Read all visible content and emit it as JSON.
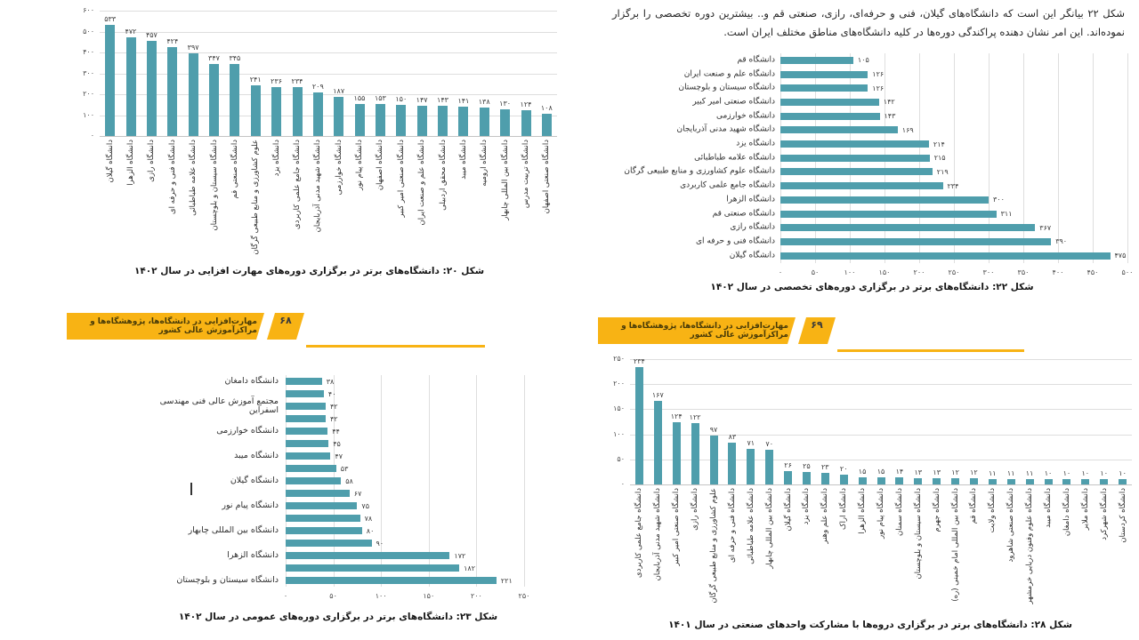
{
  "colors": {
    "bar": "#4F9EAC",
    "banner": "#F8B314",
    "grid": "#dedede",
    "axis": "#c4c4c4"
  },
  "page_left": {
    "banner": {
      "text": "مهارت‌افزایی در دانشگاه‌ها، پژوهشگاه‌ها و مراکزآموزش عالی کشور",
      "page_number": "۶۸"
    }
  },
  "page_right": {
    "intro_text": "شکل ۲۲ بیانگر این است که دانشگاه‌های گیلان، فنی و حرفه‌ای، رازی، صنعتی قم و.. بیشترین دوره تخصصی را برگزار نموده‌اند. این امر نشان دهنده پراکندگی دوره‌ها در کلیه دانشگاه‌های مناطق مختلف ایران است.",
    "banner": {
      "text": "مهارت‌افزایی در دانشگاه‌ها، پژوهشگاه‌ها و مراکزآموزش عالی کشور",
      "page_number": "۶۹"
    }
  },
  "chart_data": [
    {
      "id": "fig20",
      "type": "bar",
      "orientation": "vertical",
      "caption": "شکل ۲۰: دانشگاه‌های برتر در برگزاری دوره‌های مهارت افزایی در سال ۱۴۰۲",
      "categories": [
        "دانشگاه گیلان",
        "دانشگاه الزهرا",
        "دانشگاه رازی",
        "دانشگاه فنی و حرفه ای",
        "دانشگاه علامه طباطبائی",
        "دانشگاه سیستان و بلوچستان",
        "دانشگاه صنعتی قم",
        "علوم کشاورزی و منابع طبیعی گرگان",
        "دانشگاه یزد",
        "دانشگاه جامع علمی کاربردی",
        "دانشگاه شهید مدنی آذربایجان",
        "دانشگاه خوارزمی",
        "دانشگاه پیام نور",
        "دانشگاه اصفهان",
        "دانشگاه صنعتی امیر کبیر",
        "دانشگاه علم و صنعت ایران",
        "دانشگاه محقق اردبیلی",
        "دانشگاه میبد",
        "دانشگاه ارومیه",
        "دانشگاه بین المللی چابهار",
        "دانشگاه تربیت مدرس",
        "دانشگاه صنعتی اصفهان"
      ],
      "values": [
        533,
        472,
        457,
        424,
        397,
        347,
        345,
        241,
        236,
        234,
        209,
        187,
        155,
        153,
        150,
        147,
        143,
        141,
        138,
        130,
        124,
        108
      ],
      "ylim": [
        0,
        600
      ],
      "yticks": [
        0,
        100,
        200,
        300,
        400,
        500,
        600
      ],
      "grid": true,
      "legend": false
    },
    {
      "id": "fig22",
      "type": "bar",
      "orientation": "horizontal",
      "caption": "شکل ۲۲: دانشگاه‌های برتر در برگزاری دوره‌های تخصصی در سال ۱۴۰۲",
      "categories": [
        "دانشگاه قم",
        "دانشگاه علم و صنعت ایران",
        "دانشگاه سیستان و بلوچستان",
        "دانشگاه صنعتی امیر کبیر",
        "دانشگاه خوارزمی",
        "دانشگاه شهید مدنی آذربایجان",
        "دانشگاه یزد",
        "دانشگاه علامه طباطبائی",
        "دانشگاه علوم کشاورزی و منابع طبیعی گرگان",
        "دانشگاه جامع علمی کاربردی",
        "دانشگاه الزهرا",
        "دانشگاه صنعتی قم",
        "دانشگاه رازی",
        "دانشگاه فنی و حرفه ای",
        "دانشگاه گیلان"
      ],
      "values": [
        105,
        126,
        126,
        142,
        143,
        169,
        214,
        215,
        219,
        234,
        300,
        311,
        367,
        390,
        475
      ],
      "xlim": [
        0,
        500
      ],
      "xticks": [
        0,
        50,
        100,
        150,
        200,
        250,
        300,
        350,
        400,
        450,
        500
      ],
      "grid": true,
      "legend": false
    },
    {
      "id": "fig23",
      "type": "bar",
      "orientation": "horizontal",
      "caption": "شکل ۲۳: دانشگاه‌های برتر در برگزاری دوره‌های عمومی در سال ۱۴۰۲",
      "categories": [
        "دانشگاه دامغان",
        "",
        "مجتمع آموزش عالی فنی مهندسی اسفراین",
        "",
        "دانشگاه خوارزمی",
        "",
        "دانشگاه میبد",
        "",
        "دانشگاه گیلان",
        "",
        "دانشگاه پیام نور",
        "",
        "دانشگاه بین المللی چابهار",
        "",
        "دانشگاه الزهرا",
        "",
        "دانشگاه سیستان و بلوچستان"
      ],
      "values": [
        38,
        40,
        42,
        42,
        44,
        45,
        47,
        53,
        58,
        67,
        75,
        78,
        80,
        90,
        172,
        182,
        221
      ],
      "xlim": [
        0,
        250
      ],
      "xticks": [
        0,
        50,
        100,
        150,
        200,
        250
      ],
      "grid": true,
      "legend": false
    },
    {
      "id": "fig28",
      "type": "bar",
      "orientation": "vertical",
      "caption": "شکل ۲۸: دانشگاه‌های برتر در برگزاری دروه‌ها با مشارکت واحدهای صنعتی در سال ۱۴۰۱",
      "categories": [
        "دانشگاه جامع علمی کاربردی",
        "دانشگاه شهید مدنی آذربایجان",
        "دانشگاه صنعتی امیر کبیر",
        "دانشگاه رازی",
        "علوم کشاورزی و منابع طبیعی گرگان",
        "دانشگاه فنی و حرفه ای",
        "دانشگاه علامه طباطبائی",
        "دانشگاه بین المللی چابهار",
        "دانشگاه گیلان",
        "دانشگاه یزد",
        "دانشگاه علم وهنر",
        "دانشگاه اراک",
        "دانشگاه الزهرا",
        "دانشگاه پیام نور",
        "دانشگاه سمنان",
        "دانشگاه سیستان و بلوچستان",
        "دانشگاه جهرم",
        "دانشگاه بین المللی امام خمینی (ره)",
        "دانشگاه قم",
        "دانشگاه ولایت",
        "دانشگاه صنعتی شاهرود",
        "دانشگاه علوم وفنون دریایی خرمشهر",
        "دانشگاه میبد",
        "دانشگاه دامغان",
        "دانشگاه ملایر",
        "دانشگاه شهرکرد",
        "دانشگاه کردستان"
      ],
      "values": [
        234,
        167,
        124,
        122,
        97,
        83,
        71,
        70,
        26,
        25,
        23,
        20,
        15,
        15,
        14,
        13,
        13,
        12,
        12,
        11,
        11,
        11,
        10,
        10,
        10,
        10,
        10
      ],
      "ylim": [
        0,
        250
      ],
      "yticks": [
        0,
        50,
        100,
        150,
        200,
        250
      ],
      "grid": true,
      "legend": false
    }
  ]
}
